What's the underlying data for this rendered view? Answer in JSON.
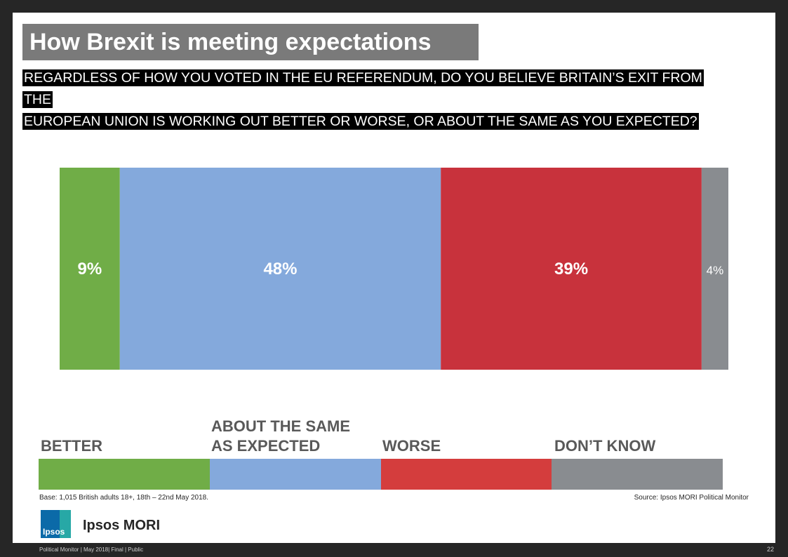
{
  "title": "How Brexit is meeting expectations",
  "question": {
    "line1": "REGARDLESS OF HOW YOU VOTED IN THE EU REFERENDUM, DO YOU BELIEVE BRITAIN’S EXIT FROM THE",
    "line2": "EUROPEAN UNION IS WORKING OUT BETTER OR WORSE, OR ABOUT THE SAME AS YOU EXPECTED?"
  },
  "chart_data": {
    "type": "bar",
    "stacked": true,
    "orientation": "horizontal",
    "unit": "%",
    "series": [
      {
        "name": "BETTER",
        "value": 9,
        "label": "9%",
        "color": "#70ad47"
      },
      {
        "name": "ABOUT THE SAME AS EXPECTED",
        "value": 48,
        "label": "48%",
        "color": "#84a9dc"
      },
      {
        "name": "WORSE",
        "value": 39,
        "label": "39%",
        "color": "#c8323c"
      },
      {
        "name": "DON’T KNOW",
        "value": 4,
        "label": "4%",
        "color": "#898c90"
      }
    ],
    "legend_position": "bottom"
  },
  "legend": {
    "better_label": "BETTER",
    "same_label_line1": "ABOUT THE SAME",
    "same_label_line2": "AS EXPECTED",
    "worse_label": "WORSE",
    "dont_know_label": "DON’T KNOW",
    "colors": {
      "better": "#70ad47",
      "same": "#84a9dc",
      "worse": "#d43d3d",
      "dont_know": "#898c90"
    }
  },
  "base_note": "Base: 1,015 British adults 18+, 18th – 22nd May 2018.",
  "source_note": "Source: Ipsos MORI Political Monitor",
  "logo": {
    "mark_text": "Ipsos",
    "wordmark": "Ipsos MORI"
  },
  "footer": "Political Monitor | May 2018| Final | Public",
  "page_number": "22"
}
